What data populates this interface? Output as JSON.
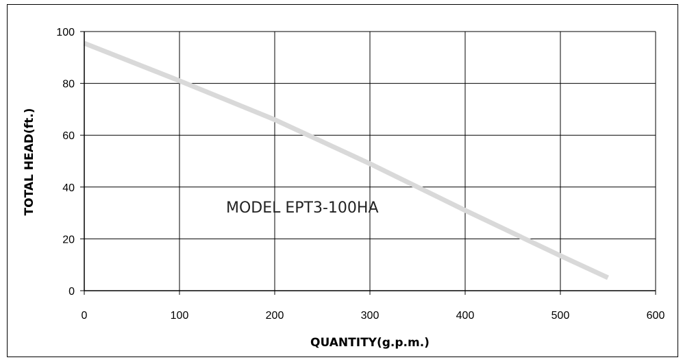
{
  "chart_data": {
    "type": "line",
    "title": "",
    "xlabel": "QUANTITY(g.p.m.)",
    "ylabel": "TOTAL HEAD(ft.)",
    "xlim": [
      0,
      600
    ],
    "ylim": [
      0,
      100
    ],
    "xticks": [
      0,
      100,
      200,
      300,
      400,
      500,
      600
    ],
    "yticks": [
      0,
      20,
      40,
      60,
      80,
      100
    ],
    "grid": true,
    "annotation": "MODEL EPT3-100HA",
    "series": [
      {
        "color": "#d9d9d9",
        "x": [
          0,
          100,
          200,
          300,
          400,
          500,
          550
        ],
        "y": [
          95.5,
          81,
          66,
          49,
          31,
          13.5,
          5
        ]
      }
    ]
  }
}
